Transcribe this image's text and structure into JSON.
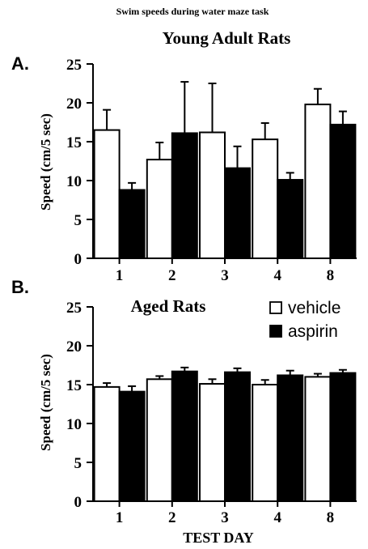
{
  "figure_title": "Swim speeds during water maze task",
  "xlabel_bottom": "TEST DAY",
  "colors": {
    "vehicle": "#ffffff",
    "aspirin": "#000000",
    "axis": "#000000"
  },
  "legend": [
    {
      "name": "vehicle",
      "color": "#ffffff"
    },
    {
      "name": "aspirin",
      "color": "#000000"
    }
  ],
  "chart_data": [
    {
      "type": "bar",
      "panel_label": "A.",
      "title": "Young Adult Rats",
      "ylabel": "Speed (cm/5 sec)",
      "xlabel": "",
      "ylim": [
        0,
        25
      ],
      "yticks": [
        0,
        5,
        10,
        15,
        20,
        25
      ],
      "categories": [
        "1",
        "2",
        "3",
        "4",
        "8"
      ],
      "series": [
        {
          "name": "vehicle",
          "values": [
            16.5,
            12.7,
            16.2,
            15.3,
            19.8
          ],
          "errors": [
            2.6,
            2.2,
            6.3,
            2.1,
            2.0
          ]
        },
        {
          "name": "aspirin",
          "values": [
            8.8,
            16.1,
            11.6,
            10.1,
            17.2
          ],
          "errors": [
            0.9,
            6.6,
            2.8,
            0.9,
            1.7
          ]
        }
      ]
    },
    {
      "type": "bar",
      "panel_label": "B.",
      "title": "Aged Rats",
      "ylabel": "Speed (cm/5 sec)",
      "xlabel": "TEST DAY",
      "ylim": [
        0,
        25
      ],
      "yticks": [
        0,
        5,
        10,
        15,
        20,
        25
      ],
      "categories": [
        "1",
        "2",
        "3",
        "4",
        "8"
      ],
      "legend_position": "top-right",
      "series": [
        {
          "name": "vehicle",
          "values": [
            14.7,
            15.7,
            15.1,
            15.0,
            16.0
          ],
          "errors": [
            0.5,
            0.4,
            0.6,
            0.6,
            0.4
          ]
        },
        {
          "name": "aspirin",
          "values": [
            14.1,
            16.7,
            16.6,
            16.2,
            16.5
          ],
          "errors": [
            0.7,
            0.5,
            0.5,
            0.6,
            0.4
          ]
        }
      ]
    }
  ]
}
